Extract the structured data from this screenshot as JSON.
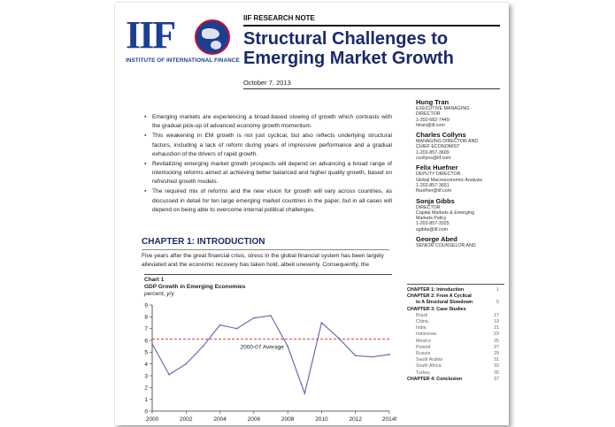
{
  "logo": {
    "letters": "IIF",
    "caption": "INSTITUTE OF INTERNATIONAL FINANCE"
  },
  "header": {
    "label": "IIF RESEARCH NOTE",
    "title": "Structural Challenges to Emerging Market Growth",
    "date": "October 7, 2013"
  },
  "summary": [
    "Emerging markets are experiencing a broad-based slowing of growth which contrasts with the gradual pick-up of advanced economy growth momentum.",
    "This weakening in EM growth is not just cyclical, but also reflects underlying structural factors, including a lack of reform during years of impressive performance and a gradual exhaustion of the drivers of rapid growth.",
    "Revitalizing emerging market growth prospects will depend on advancing a broad range of interlocking reforms aimed at achieving better balanced and higher quality growth, based on refreshed growth models.",
    "The required mix of reforms and the new vision for growth will vary across countries, as discussed in detail for ten large emerging market countries in the paper, but in all cases will depend on being able to overcome internal political challenges."
  ],
  "chapter": {
    "heading": "CHAPTER 1: INTRODUCTION",
    "text": "Five years after the great financial crisis, stress in the global financial system has been largely alleviated and the economic recovery has taken hold, albeit unevenly. Consequently, the"
  },
  "chart_block": {
    "label": "Chart 1",
    "subtitle": "GDP Growth in Emerging Economies",
    "units": "percent, y/y"
  },
  "chart_data": {
    "type": "line",
    "title": "GDP Growth in Emerging Economies",
    "ylabel": "percent, y/y",
    "x": [
      2000,
      2001,
      2002,
      2003,
      2004,
      2005,
      2006,
      2007,
      2008,
      2009,
      2010,
      2011,
      2012,
      2013,
      2014
    ],
    "x_tick_labels": [
      "2000",
      "2002",
      "2004",
      "2006",
      "2008",
      "2010",
      "2012",
      "2014f"
    ],
    "x_tick_values": [
      2000,
      2002,
      2004,
      2006,
      2008,
      2010,
      2012,
      2014
    ],
    "series": [
      {
        "values": [
          5.7,
          3.1,
          4.0,
          5.5,
          7.3,
          7.0,
          7.9,
          8.1,
          5.5,
          1.5,
          7.5,
          6.2,
          4.7,
          4.6,
          4.8
        ],
        "color": "#6b6bb5"
      }
    ],
    "reference_line": {
      "value": 6.1,
      "label": "2000-07 Average",
      "color": "#e03a3a",
      "style": "dashed"
    },
    "ylim": [
      0,
      9
    ],
    "y_ticks": [
      0,
      1,
      2,
      3,
      4,
      5,
      6,
      7,
      8,
      9
    ],
    "grid": false
  },
  "contacts": [
    {
      "name": "Hung Tran",
      "lines": [
        "EXECUTIVE MANAGING",
        "DIRECTOR",
        "1-202-682-7449",
        "htran@iif.com"
      ]
    },
    {
      "name": "Charles Collyns",
      "lines": [
        "MANAGING DIRECTOR AND",
        "CHIEF ECONOMIST",
        "1-202-857-3609",
        "ccollyns@iif.com"
      ]
    },
    {
      "name": "Felix Huefner",
      "lines": [
        "DEPUTY DIRECTOR",
        "Global Macroeconomic Analysis",
        "1-202-857-3651",
        "fhuefner@iif.com"
      ]
    },
    {
      "name": "Sonja Gibbs",
      "lines": [
        "DIRECTOR",
        "Capital Markets & Emerging",
        "Markets Policy",
        "1-202-857-3325",
        "sgibbs@iif.com"
      ]
    },
    {
      "name": "George Abed",
      "lines": [
        "SENIOR COUNSELOR AND"
      ]
    }
  ],
  "toc": [
    {
      "label": "CHAPTER 1: Introduction",
      "page": "1",
      "kind": "main"
    },
    {
      "label": "CHAPTER 2: From A Cyclical",
      "page": "",
      "kind": "main"
    },
    {
      "label": "to A Structural Slowdown",
      "page": "5",
      "kind": "chapter-sub"
    },
    {
      "label": "CHAPTER 3: Case Studies",
      "page": "",
      "kind": "main"
    },
    {
      "label": "Brazil",
      "page": "17",
      "kind": "sub"
    },
    {
      "label": "China",
      "page": "19",
      "kind": "sub"
    },
    {
      "label": "India",
      "page": "21",
      "kind": "sub"
    },
    {
      "label": "Indonesia",
      "page": "23",
      "kind": "sub"
    },
    {
      "label": "Mexico",
      "page": "25",
      "kind": "sub"
    },
    {
      "label": "Poland",
      "page": "27",
      "kind": "sub"
    },
    {
      "label": "Russia",
      "page": "29",
      "kind": "sub"
    },
    {
      "label": "Saudi Arabia",
      "page": "31",
      "kind": "sub"
    },
    {
      "label": "South Africa",
      "page": "33",
      "kind": "sub"
    },
    {
      "label": "Turkey",
      "page": "35",
      "kind": "sub"
    },
    {
      "label": "CHAPTER 4: Conclusion",
      "page": "37",
      "kind": "main"
    }
  ]
}
